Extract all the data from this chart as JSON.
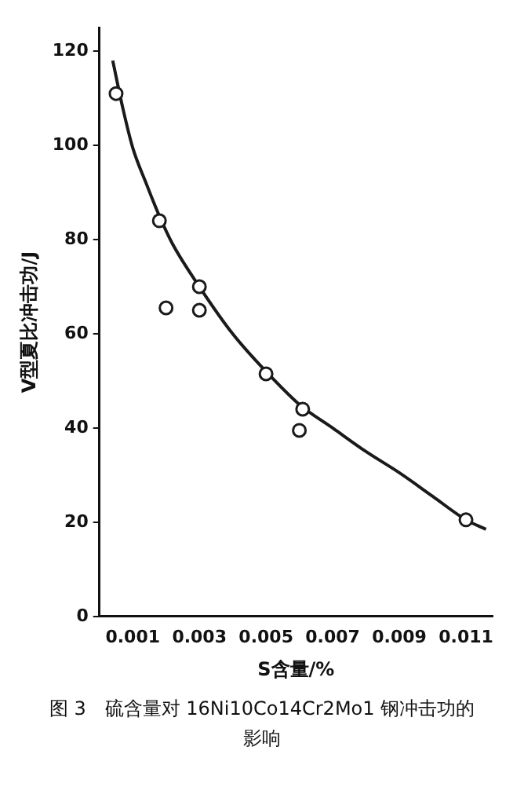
{
  "chart_data": {
    "type": "scatter",
    "xlabel": "S含量/%",
    "ylabel": "V型夏比冲击功/J",
    "annotations": [
      "图 3　硫含量对 16Ni10Co14Cr2Mo1 钢冲击功的影响"
    ],
    "series": [
      {
        "color": "#1a1a1a",
        "marker": "circle",
        "x": [
          0.0005,
          0.0018,
          0.002,
          0.003,
          0.003,
          0.005,
          0.0061,
          0.006,
          0.011
        ],
        "values": [
          111,
          84,
          65.5,
          70,
          65,
          51.5,
          44,
          39.5,
          20.5
        ]
      },
      {
        "type": "line",
        "color": "#1a1a1a",
        "marker": "none",
        "x": [
          0.0004,
          0.0007,
          0.001,
          0.0014,
          0.0018,
          0.0022,
          0.003,
          0.004,
          0.005,
          0.006,
          0.007,
          0.008,
          0.009,
          0.01,
          0.011,
          0.0116
        ],
        "values": [
          118,
          108,
          99.5,
          92,
          85,
          79,
          70,
          60,
          52,
          45,
          40,
          35,
          30.5,
          25.5,
          20.5,
          18.5
        ]
      }
    ],
    "xlim": [
      0,
      0.0118
    ],
    "xticks": [
      0.001,
      0.003,
      0.005,
      0.007,
      0.009,
      0.011
    ],
    "ylim": [
      0,
      125
    ],
    "yticks": [
      0,
      20,
      40,
      60,
      80,
      100,
      120
    ],
    "grid": false,
    "legend": false
  }
}
